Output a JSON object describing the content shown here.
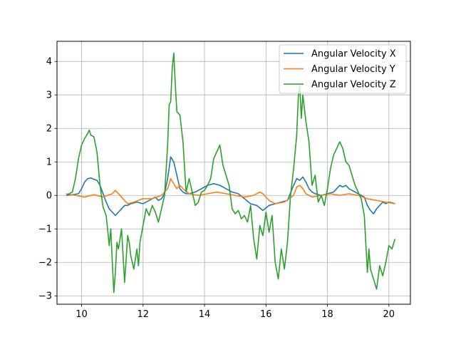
{
  "chart_data": {
    "type": "line",
    "title": "",
    "xlabel": "",
    "ylabel": "",
    "xlim": [
      9.2,
      20.7
    ],
    "ylim": [
      -3.25,
      4.6
    ],
    "xticks": [
      10,
      12,
      14,
      16,
      18,
      20
    ],
    "yticks": [
      -3,
      -2,
      -1,
      0,
      1,
      2,
      3,
      4
    ],
    "grid": true,
    "legend_position": "top-right",
    "series": [
      {
        "name": "Angular Velocity X",
        "color": "#1f77b4",
        "x": [
          9.5,
          9.7,
          9.9,
          10.0,
          10.1,
          10.2,
          10.3,
          10.4,
          10.5,
          10.6,
          10.7,
          10.8,
          10.9,
          11.0,
          11.1,
          11.2,
          11.3,
          11.4,
          11.5,
          11.6,
          11.8,
          12.0,
          12.2,
          12.4,
          12.5,
          12.6,
          12.7,
          12.8,
          12.9,
          13.0,
          13.1,
          13.2,
          13.3,
          13.4,
          13.5,
          13.7,
          13.9,
          14.1,
          14.3,
          14.5,
          14.7,
          14.9,
          15.1,
          15.3,
          15.5,
          15.7,
          15.9,
          16.1,
          16.3,
          16.5,
          16.7,
          16.9,
          17.0,
          17.1,
          17.2,
          17.3,
          17.4,
          17.5,
          17.6,
          17.8,
          18.0,
          18.2,
          18.4,
          18.5,
          18.6,
          18.7,
          18.8,
          19.0,
          19.2,
          19.3,
          19.4,
          19.5,
          19.6,
          19.7,
          19.8,
          19.9,
          20.0,
          20.1,
          20.2
        ],
        "values": [
          0.0,
          0.02,
          0.05,
          0.2,
          0.4,
          0.5,
          0.52,
          0.48,
          0.45,
          0.3,
          0.05,
          -0.2,
          -0.4,
          -0.5,
          -0.6,
          -0.5,
          -0.4,
          -0.3,
          -0.3,
          -0.25,
          -0.2,
          -0.25,
          -0.15,
          -0.05,
          -0.15,
          -0.1,
          0.05,
          0.5,
          1.15,
          1.0,
          0.6,
          0.2,
          0.1,
          0.05,
          0.05,
          0.1,
          0.2,
          0.3,
          0.35,
          0.3,
          0.2,
          0.1,
          0.05,
          -0.1,
          -0.25,
          -0.3,
          -0.45,
          -0.3,
          -0.25,
          -0.2,
          -0.15,
          0.3,
          0.5,
          0.45,
          0.55,
          0.4,
          0.2,
          0.1,
          0.05,
          0.0,
          0.05,
          0.1,
          0.3,
          0.25,
          0.3,
          0.2,
          0.15,
          0.05,
          -0.05,
          -0.3,
          -0.45,
          -0.55,
          -0.4,
          -0.3,
          -0.2,
          -0.25,
          -0.2,
          -0.22,
          -0.25
        ]
      },
      {
        "name": "Angular Velocity Y",
        "color": "#ff7f0e",
        "x": [
          9.5,
          9.8,
          10.1,
          10.4,
          10.7,
          11.0,
          11.1,
          11.3,
          11.5,
          11.7,
          12.0,
          12.3,
          12.6,
          12.8,
          12.9,
          13.0,
          13.1,
          13.2,
          13.3,
          13.5,
          13.8,
          14.1,
          14.4,
          14.7,
          15.0,
          15.3,
          15.6,
          15.8,
          15.9,
          16.1,
          16.3,
          16.6,
          16.9,
          17.0,
          17.1,
          17.2,
          17.3,
          17.5,
          17.8,
          18.1,
          18.4,
          18.7,
          19.0,
          19.3,
          19.6,
          19.9,
          20.2
        ],
        "values": [
          0.05,
          0.0,
          -0.05,
          0.02,
          -0.05,
          0.05,
          0.15,
          -0.05,
          -0.25,
          -0.2,
          -0.1,
          -0.1,
          0.0,
          0.2,
          0.5,
          0.35,
          0.2,
          0.3,
          0.2,
          0.05,
          0.0,
          0.05,
          0.1,
          0.05,
          0.0,
          -0.05,
          0.0,
          0.1,
          0.05,
          -0.15,
          -0.25,
          -0.2,
          0.0,
          0.25,
          0.3,
          0.2,
          0.05,
          -0.05,
          0.0,
          0.05,
          0.0,
          0.05,
          0.0,
          -0.1,
          -0.15,
          -0.2,
          -0.25
        ]
      },
      {
        "name": "Angular Velocity Z",
        "color": "#2ca02c",
        "x": [
          9.5,
          9.7,
          9.8,
          9.9,
          10.0,
          10.1,
          10.2,
          10.25,
          10.3,
          10.4,
          10.5,
          10.6,
          10.7,
          10.8,
          10.9,
          10.95,
          11.0,
          11.05,
          11.1,
          11.15,
          11.2,
          11.3,
          11.4,
          11.5,
          11.55,
          11.6,
          11.7,
          11.8,
          11.85,
          11.9,
          12.0,
          12.1,
          12.2,
          12.3,
          12.4,
          12.5,
          12.6,
          12.7,
          12.8,
          12.85,
          12.9,
          12.95,
          13.0,
          13.05,
          13.1,
          13.2,
          13.3,
          13.4,
          13.5,
          13.6,
          13.7,
          13.8,
          13.9,
          14.0,
          14.1,
          14.2,
          14.3,
          14.4,
          14.5,
          14.6,
          14.7,
          14.8,
          14.9,
          15.0,
          15.1,
          15.2,
          15.3,
          15.4,
          15.5,
          15.6,
          15.7,
          15.8,
          15.9,
          16.0,
          16.1,
          16.2,
          16.3,
          16.4,
          16.5,
          16.6,
          16.7,
          16.8,
          16.9,
          17.0,
          17.05,
          17.1,
          17.15,
          17.2,
          17.3,
          17.4,
          17.5,
          17.6,
          17.7,
          17.8,
          17.9,
          18.0,
          18.1,
          18.2,
          18.3,
          18.4,
          18.5,
          18.6,
          18.7,
          18.8,
          18.9,
          19.0,
          19.1,
          19.2,
          19.3,
          19.35,
          19.4,
          19.5,
          19.6,
          19.7,
          19.8,
          19.9,
          20.0,
          20.1,
          20.2
        ],
        "values": [
          0.0,
          0.1,
          0.5,
          1.1,
          1.5,
          1.7,
          1.85,
          1.95,
          1.8,
          1.75,
          1.3,
          0.3,
          -0.35,
          -0.6,
          -1.5,
          -1.0,
          -2.0,
          -2.9,
          -2.3,
          -1.4,
          -1.6,
          -1.0,
          -2.6,
          -1.2,
          -1.4,
          -1.8,
          -2.2,
          -1.6,
          -2.1,
          -1.4,
          -0.9,
          -0.4,
          -0.6,
          -0.3,
          -0.5,
          -0.8,
          -0.4,
          0.0,
          1.5,
          2.7,
          2.8,
          3.8,
          4.25,
          3.3,
          2.5,
          2.4,
          1.6,
          0.1,
          0.5,
          0.1,
          -0.3,
          -0.2,
          0.1,
          0.15,
          0.3,
          0.5,
          1.1,
          1.3,
          1.5,
          0.9,
          0.6,
          0.3,
          -0.4,
          -0.55,
          -0.45,
          -0.7,
          -0.6,
          -0.8,
          -0.3,
          -1.3,
          -1.9,
          -0.9,
          -1.2,
          -0.5,
          -1.1,
          -0.6,
          -2.0,
          -2.5,
          -1.6,
          -2.2,
          -1.4,
          0.0,
          0.8,
          1.8,
          2.9,
          3.3,
          2.3,
          3.0,
          2.2,
          1.6,
          0.3,
          0.6,
          -0.2,
          0.0,
          -0.3,
          0.2,
          0.8,
          1.2,
          1.4,
          1.6,
          1.4,
          1.0,
          0.9,
          0.6,
          0.3,
          0.1,
          -0.1,
          -0.6,
          -2.3,
          -1.6,
          -2.2,
          -2.5,
          -2.8,
          -2.1,
          -2.4,
          -2.0,
          -1.5,
          -1.6,
          -1.3
        ]
      }
    ]
  }
}
